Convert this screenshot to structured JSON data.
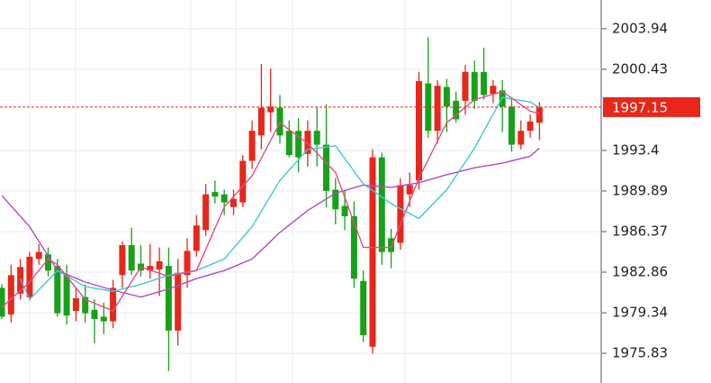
{
  "chart_data": {
    "type": "candlestick",
    "ylim": [
      1973.26,
      2006.43
    ],
    "yticks": [
      2003.94,
      2000.43,
      1993.4,
      1989.89,
      1986.37,
      1982.86,
      1979.34,
      1975.83
    ],
    "grid": true,
    "up_color": "#e8261a",
    "down_color": "#17a11a",
    "current_price": 1997.15,
    "current_price_color": "#e8261a",
    "open": [
      1981.5,
      1979.2,
      1981.0,
      1980.7,
      1984.0,
      1984.4,
      1983.4,
      1982.6,
      1979.5,
      1980.7,
      1979.6,
      1979.0,
      1978.6,
      1982.6,
      1985.2,
      1983.6,
      1983.0,
      1983.1,
      1983.4,
      1977.8,
      1982.6,
      1984.7,
      1986.5,
      1989.8,
      1989.6,
      1988.5,
      1988.9,
      1992.5,
      1994.7,
      1996.7,
      1997.1,
      1995.1,
      1995.1,
      1993.1,
      1995.1,
      1993.9,
      1990.0,
      1988.6,
      1987.7,
      1982.1,
      1976.4,
      1992.8,
      1985.8,
      1985.4,
      1989.6,
      1990.8,
      1999.2,
      1995.1,
      1998.9,
      1997.7,
      1997.7,
      2000.2,
      2000.2,
      1998.3,
      1998.6,
      1997.2,
      1993.9,
      1995.1,
      1995.8
    ],
    "high": [
      1981.8,
      1983.5,
      1984.0,
      1984.6,
      1985.3,
      1985.0,
      1984.0,
      1983.5,
      1981.5,
      1981.8,
      1980.5,
      1980.2,
      1982.2,
      1985.5,
      1986.7,
      1985.2,
      1985.3,
      1985.0,
      1985.0,
      1984.0,
      1985.8,
      1987.8,
      1990.5,
      1990.8,
      1990.0,
      1990.0,
      1993.0,
      1996.0,
      2000.9,
      2000.5,
      1998.2,
      1996.0,
      1996.2,
      1996.0,
      1997.2,
      1997.4,
      1991.0,
      1990.0,
      1989.0,
      1983.0,
      1993.5,
      1993.2,
      1986.6,
      1991.0,
      1991.5,
      2000.2,
      2003.2,
      1999.5,
      1999.6,
      1998.5,
      2000.8,
      2001.2,
      2002.3,
      1999.5,
      1999.5,
      1998.0,
      1996.0,
      1996.5,
      1997.6
    ],
    "low": [
      1978.8,
      1978.5,
      1980.5,
      1980.4,
      1983.5,
      1982.5,
      1979.0,
      1978.3,
      1978.6,
      1978.5,
      1976.7,
      1977.5,
      1978.0,
      1981.5,
      1982.6,
      1982.5,
      1982.3,
      1980.8,
      1974.3,
      1976.5,
      1981.5,
      1984.2,
      1986.0,
      1988.8,
      1987.8,
      1987.8,
      1988.5,
      1991.8,
      1993.5,
      1995.0,
      1994.0,
      1992.8,
      1991.5,
      1992.0,
      1992.0,
      1988.5,
      1987.0,
      1986.5,
      1981.5,
      1976.8,
      1975.8,
      1983.5,
      1983.2,
      1984.8,
      1988.5,
      1990.0,
      1994.5,
      1994.0,
      1995.0,
      1995.8,
      1996.5,
      1997.0,
      1997.8,
      1997.5,
      1995.0,
      1993.3,
      1993.5,
      1994.5,
      1994.3
    ],
    "close": [
      1979.0,
      1982.6,
      1983.3,
      1984.2,
      1984.6,
      1983.0,
      1979.3,
      1979.1,
      1980.6,
      1979.3,
      1978.8,
      1978.6,
      1981.5,
      1985.2,
      1983.0,
      1983.0,
      1983.4,
      1983.8,
      1977.8,
      1982.8,
      1984.7,
      1986.9,
      1989.6,
      1989.4,
      1988.9,
      1989.2,
      1992.5,
      1995.1,
      1997.1,
      1997.2,
      1994.7,
      1993.0,
      1992.8,
      1995.1,
      1993.9,
      1989.9,
      1988.3,
      1987.7,
      1982.3,
      1977.4,
      1992.8,
      1984.6,
      1984.6,
      1990.4,
      1990.4,
      1999.4,
      1995.1,
      1999.0,
      1997.2,
      1996.1,
      2000.2,
      1997.7,
      1998.2,
      1999.0,
      1997.2,
      1993.9,
      1995.1,
      1995.9,
      1997.1
    ],
    "lines": [
      {
        "color": "#b04ac6",
        "x": [
          0,
          3,
          6,
          9,
          12,
          15,
          18,
          21,
          24,
          27,
          30,
          33,
          36,
          39,
          42,
          45,
          48,
          51,
          54,
          57,
          58
        ],
        "values": [
          1989.5,
          1986.8,
          1983.0,
          1982.0,
          1981.3,
          1980.7,
          1981.4,
          1982.3,
          1983.0,
          1984.0,
          1986.3,
          1988.2,
          1989.7,
          1990.4,
          1990.2,
          1990.6,
          1991.3,
          1991.9,
          1992.3,
          1992.9,
          1993.6
        ]
      },
      {
        "color": "#45c5d6",
        "x": [
          2,
          3,
          6,
          9,
          12,
          15,
          18,
          21,
          24,
          27,
          30,
          33,
          36,
          39,
          42,
          45,
          48,
          51,
          54,
          57,
          58
        ],
        "values": [
          1982.3,
          1980.5,
          1983.0,
          1981.6,
          1981.2,
          1981.8,
          1982.6,
          1983.0,
          1984.0,
          1986.8,
          1990.8,
          1993.5,
          1993.8,
          1990.5,
          1988.8,
          1987.5,
          1990.0,
          1993.6,
          1998.0,
          1997.6,
          1997.1
        ]
      },
      {
        "color": "#e54b86",
        "x": [
          0,
          3,
          5,
          6,
          9,
          12,
          15,
          18,
          21,
          24,
          27,
          30,
          33,
          36,
          39,
          42,
          45,
          48,
          51,
          54,
          57,
          58
        ],
        "values": [
          1979.8,
          1982.0,
          1984.0,
          1983.5,
          1980.5,
          1979.5,
          1983.3,
          1982.5,
          1983.0,
          1988.5,
          1991.2,
          1995.8,
          1994.0,
          1991.5,
          1985.0,
          1985.0,
          1991.0,
          1995.8,
          1997.8,
          1998.5,
          1996.8,
          1996.6
        ]
      }
    ]
  }
}
